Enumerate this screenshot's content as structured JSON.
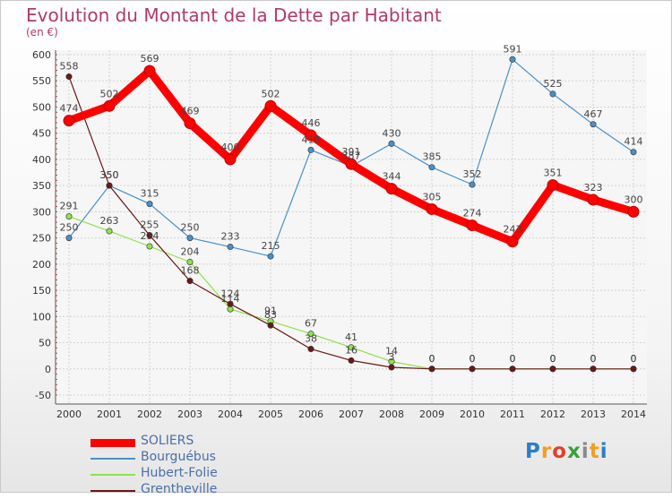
{
  "chart_data": {
    "type": "line",
    "title": "Evolution du Montant de la Dette par Habitant",
    "subtitle": "(en €)",
    "xlabel": "",
    "ylabel": "",
    "x": [
      "2000",
      "2001",
      "2002",
      "2003",
      "2004",
      "2005",
      "2006",
      "2007",
      "2008",
      "2009",
      "2010",
      "2011",
      "2012",
      "2013",
      "2014"
    ],
    "ylim": [
      -50,
      600
    ],
    "yticks": [
      -50,
      0,
      50,
      100,
      150,
      200,
      250,
      300,
      350,
      400,
      450,
      500,
      550,
      600
    ],
    "grid": true,
    "legend_position": "bottom-left",
    "series": [
      {
        "name": "SOLIERS",
        "color": "#ff0000",
        "values": [
          474,
          502,
          569,
          469,
          400,
          502,
          446,
          391,
          344,
          305,
          274,
          243,
          351,
          323,
          300
        ]
      },
      {
        "name": "Bourguébus",
        "color": "#4a90c8",
        "values": [
          250,
          350,
          315,
          250,
          233,
          215,
          418,
          387,
          430,
          385,
          352,
          591,
          525,
          467,
          414
        ]
      },
      {
        "name": "Hubert-Folie",
        "color": "#90e050",
        "values": [
          291,
          263,
          234,
          204,
          114,
          91,
          67,
          41,
          14,
          0,
          0,
          0,
          0,
          0,
          0
        ]
      },
      {
        "name": "Grentheville",
        "color": "#6a1818",
        "values": [
          558,
          350,
          255,
          168,
          124,
          83,
          38,
          16,
          3,
          0,
          0,
          0,
          0,
          0,
          0
        ]
      }
    ]
  },
  "logo": {
    "text": "Proxiti",
    "letter_colors": [
      "#2d7fc4",
      "#f0a020",
      "#e0402a",
      "#3aa03a",
      "#8a8a8a",
      "#f0a020",
      "#2d7fc4"
    ]
  }
}
